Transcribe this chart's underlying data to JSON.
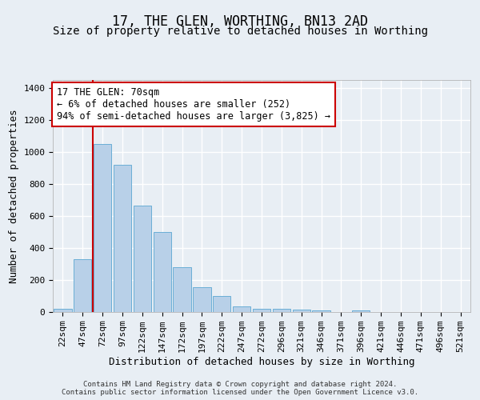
{
  "title": "17, THE GLEN, WORTHING, BN13 2AD",
  "subtitle": "Size of property relative to detached houses in Worthing",
  "xlabel": "Distribution of detached houses by size in Worthing",
  "ylabel": "Number of detached properties",
  "footer_line1": "Contains HM Land Registry data © Crown copyright and database right 2024.",
  "footer_line2": "Contains public sector information licensed under the Open Government Licence v3.0.",
  "bar_labels": [
    "22sqm",
    "47sqm",
    "72sqm",
    "97sqm",
    "122sqm",
    "147sqm",
    "172sqm",
    "197sqm",
    "222sqm",
    "247sqm",
    "272sqm",
    "296sqm",
    "321sqm",
    "346sqm",
    "371sqm",
    "396sqm",
    "421sqm",
    "446sqm",
    "471sqm",
    "496sqm",
    "521sqm"
  ],
  "bar_values": [
    20,
    330,
    1050,
    920,
    665,
    500,
    280,
    155,
    100,
    35,
    20,
    20,
    15,
    10,
    0,
    10,
    0,
    0,
    0,
    0,
    0
  ],
  "bar_color": "#b8d0e8",
  "bar_edge_color": "#6aaed6",
  "vline_color": "#cc0000",
  "annotation_text": "17 THE GLEN: 70sqm\n← 6% of detached houses are smaller (252)\n94% of semi-detached houses are larger (3,825) →",
  "annotation_box_color": "#ffffff",
  "annotation_box_edge": "#cc0000",
  "ylim": [
    0,
    1450
  ],
  "yticks": [
    0,
    200,
    400,
    600,
    800,
    1000,
    1200,
    1400
  ],
  "background_color": "#e8eef4",
  "plot_bg_color": "#e8eef4",
  "grid_color": "#ffffff",
  "title_fontsize": 12,
  "subtitle_fontsize": 10,
  "axis_label_fontsize": 9,
  "tick_fontsize": 8,
  "annotation_fontsize": 8.5,
  "footer_fontsize": 6.5
}
